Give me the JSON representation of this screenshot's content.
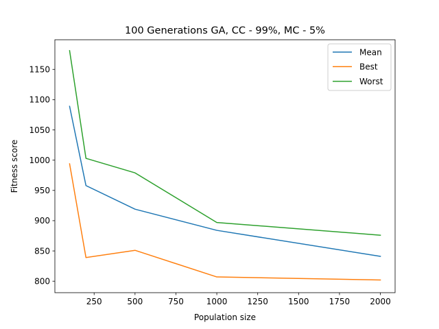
{
  "chart_data": {
    "type": "line",
    "title": "100 Generations GA, CC - 99%, MC - 5%",
    "xlabel": "Population size",
    "ylabel": "Fitness score",
    "x": [
      100,
      200,
      500,
      1000,
      2000
    ],
    "xlim": [
      10,
      2090
    ],
    "ylim": [
      781,
      1199
    ],
    "xticks": [
      250,
      500,
      750,
      1000,
      1250,
      1500,
      1750,
      2000
    ],
    "yticks": [
      800,
      850,
      900,
      950,
      1000,
      1050,
      1100,
      1150
    ],
    "grid": false,
    "legend_position": "top-right",
    "series": [
      {
        "name": "Mean",
        "color": "#1f77b4",
        "values": [
          1089,
          958,
          919,
          884,
          841
        ]
      },
      {
        "name": "Best",
        "color": "#ff7f0e",
        "values": [
          994,
          839,
          851,
          807,
          802
        ]
      },
      {
        "name": "Worst",
        "color": "#2ca02c",
        "values": [
          1181,
          1003,
          979,
          897,
          876
        ]
      }
    ]
  }
}
